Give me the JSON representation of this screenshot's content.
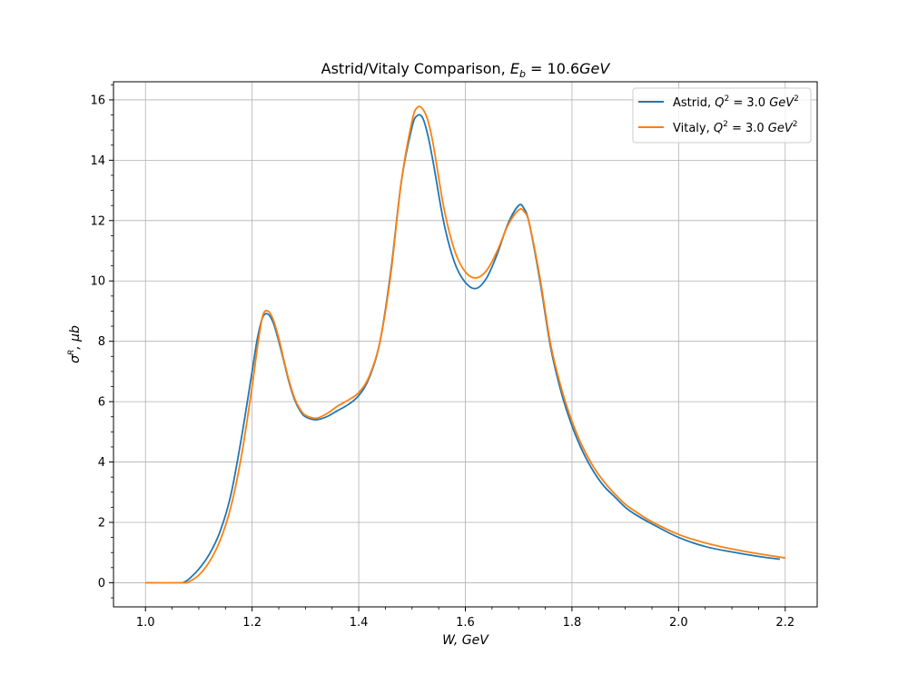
{
  "chart_data": {
    "type": "line",
    "title": "Astrid/Vitaly Comparison, E_b = 10.6GeV",
    "title_parts": {
      "main": "Astrid/Vitaly Comparison, ",
      "var": "E",
      "sub": "b",
      "rest": " = 10.6",
      "unit": "GeV"
    },
    "xlabel": "W, GeV",
    "ylabel": "σ^R, μb",
    "xlim": [
      0.94,
      2.26
    ],
    "ylim": [
      -0.8,
      16.6
    ],
    "xticks": [
      1.0,
      1.2,
      1.4,
      1.6,
      1.8,
      2.0,
      2.2
    ],
    "xtick_labels": [
      "1.0",
      "1.2",
      "1.4",
      "1.6",
      "1.8",
      "2.0",
      "2.2"
    ],
    "yticks": [
      0,
      2,
      4,
      6,
      8,
      10,
      12,
      14,
      16
    ],
    "ytick_labels": [
      "0",
      "2",
      "4",
      "6",
      "8",
      "10",
      "12",
      "14",
      "16"
    ],
    "grid": true,
    "legend_position": "top-right",
    "series": [
      {
        "name": "Astrid, Q² = 3.0 GeV²",
        "legend": {
          "prefix": "Astrid, ",
          "var": "Q",
          "sup": "2",
          "mid": " = 3.0 ",
          "unit": "GeV",
          "unit_sup": "2"
        },
        "color": "#1f77b4",
        "points": [
          [
            1.07,
            0.0
          ],
          [
            1.08,
            0.1
          ],
          [
            1.1,
            0.45
          ],
          [
            1.12,
            0.95
          ],
          [
            1.14,
            1.7
          ],
          [
            1.16,
            2.9
          ],
          [
            1.18,
            4.8
          ],
          [
            1.2,
            7.0
          ],
          [
            1.21,
            8.1
          ],
          [
            1.22,
            8.8
          ],
          [
            1.23,
            8.9
          ],
          [
            1.24,
            8.6
          ],
          [
            1.25,
            8.0
          ],
          [
            1.26,
            7.3
          ],
          [
            1.27,
            6.6
          ],
          [
            1.28,
            6.05
          ],
          [
            1.29,
            5.7
          ],
          [
            1.3,
            5.5
          ],
          [
            1.32,
            5.4
          ],
          [
            1.34,
            5.5
          ],
          [
            1.36,
            5.7
          ],
          [
            1.38,
            5.9
          ],
          [
            1.4,
            6.2
          ],
          [
            1.42,
            6.8
          ],
          [
            1.44,
            8.0
          ],
          [
            1.46,
            10.3
          ],
          [
            1.48,
            13.3
          ],
          [
            1.5,
            15.1
          ],
          [
            1.51,
            15.48
          ],
          [
            1.52,
            15.4
          ],
          [
            1.53,
            14.8
          ],
          [
            1.54,
            13.9
          ],
          [
            1.56,
            11.9
          ],
          [
            1.58,
            10.6
          ],
          [
            1.6,
            9.95
          ],
          [
            1.62,
            9.75
          ],
          [
            1.64,
            10.1
          ],
          [
            1.66,
            10.9
          ],
          [
            1.68,
            11.9
          ],
          [
            1.7,
            12.5
          ],
          [
            1.71,
            12.4
          ],
          [
            1.72,
            11.9
          ],
          [
            1.74,
            10.0
          ],
          [
            1.76,
            7.8
          ],
          [
            1.78,
            6.3
          ],
          [
            1.8,
            5.2
          ],
          [
            1.82,
            4.35
          ],
          [
            1.84,
            3.7
          ],
          [
            1.86,
            3.2
          ],
          [
            1.88,
            2.85
          ],
          [
            1.9,
            2.5
          ],
          [
            1.92,
            2.25
          ],
          [
            1.95,
            1.95
          ],
          [
            2.0,
            1.5
          ],
          [
            2.05,
            1.2
          ],
          [
            2.1,
            1.02
          ],
          [
            2.15,
            0.87
          ],
          [
            2.19,
            0.78
          ]
        ]
      },
      {
        "name": "Vitaly, Q² = 3.0 GeV²",
        "legend": {
          "prefix": "Vitaly, ",
          "var": "Q",
          "sup": "2",
          "mid": " = 3.0 ",
          "unit": "GeV",
          "unit_sup": "2"
        },
        "color": "#ff7f0e",
        "points": [
          [
            1.0,
            0.0
          ],
          [
            1.07,
            0.0
          ],
          [
            1.08,
            0.02
          ],
          [
            1.1,
            0.25
          ],
          [
            1.12,
            0.7
          ],
          [
            1.14,
            1.4
          ],
          [
            1.16,
            2.5
          ],
          [
            1.18,
            4.2
          ],
          [
            1.2,
            6.5
          ],
          [
            1.21,
            7.8
          ],
          [
            1.22,
            8.85
          ],
          [
            1.23,
            9.0
          ],
          [
            1.24,
            8.7
          ],
          [
            1.25,
            8.1
          ],
          [
            1.26,
            7.35
          ],
          [
            1.27,
            6.65
          ],
          [
            1.28,
            6.1
          ],
          [
            1.29,
            5.75
          ],
          [
            1.3,
            5.55
          ],
          [
            1.32,
            5.45
          ],
          [
            1.34,
            5.6
          ],
          [
            1.36,
            5.85
          ],
          [
            1.38,
            6.05
          ],
          [
            1.4,
            6.3
          ],
          [
            1.42,
            6.85
          ],
          [
            1.44,
            8.0
          ],
          [
            1.46,
            10.2
          ],
          [
            1.48,
            13.3
          ],
          [
            1.5,
            15.3
          ],
          [
            1.51,
            15.75
          ],
          [
            1.52,
            15.7
          ],
          [
            1.53,
            15.3
          ],
          [
            1.54,
            14.5
          ],
          [
            1.56,
            12.4
          ],
          [
            1.58,
            11.0
          ],
          [
            1.6,
            10.3
          ],
          [
            1.62,
            10.1
          ],
          [
            1.64,
            10.35
          ],
          [
            1.66,
            11.0
          ],
          [
            1.68,
            11.85
          ],
          [
            1.7,
            12.35
          ],
          [
            1.71,
            12.3
          ],
          [
            1.72,
            11.9
          ],
          [
            1.74,
            10.1
          ],
          [
            1.76,
            7.9
          ],
          [
            1.78,
            6.45
          ],
          [
            1.8,
            5.35
          ],
          [
            1.82,
            4.5
          ],
          [
            1.84,
            3.85
          ],
          [
            1.86,
            3.35
          ],
          [
            1.88,
            2.95
          ],
          [
            1.9,
            2.6
          ],
          [
            1.92,
            2.35
          ],
          [
            1.95,
            2.02
          ],
          [
            2.0,
            1.6
          ],
          [
            2.05,
            1.32
          ],
          [
            2.1,
            1.12
          ],
          [
            2.15,
            0.96
          ],
          [
            2.2,
            0.82
          ]
        ]
      }
    ]
  }
}
